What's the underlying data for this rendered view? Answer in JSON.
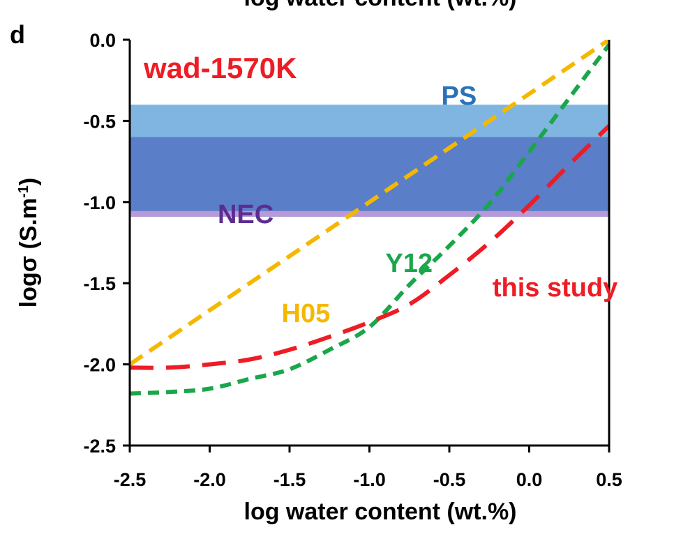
{
  "panel_label": "d",
  "top_cutoff_text": "log water content (wt.%)",
  "chart_data": {
    "type": "line",
    "title": "wad-1570K",
    "xlabel": "log water content (wt.%)",
    "ylabel": "logσ (S.m",
    "ylabel_sup": "-1",
    "ylabel_close": ")",
    "xlim": [
      -2.5,
      0.5
    ],
    "ylim": [
      -2.5,
      0.0
    ],
    "xticks": [
      "-2.5",
      "-2.0",
      "-1.5",
      "-1.0",
      "-0.5",
      "0.0",
      "0.5"
    ],
    "yticks": [
      "0.0",
      "-0.5",
      "-1.0",
      "-1.5",
      "-2.0",
      "-2.5"
    ],
    "grid": false,
    "bands": [
      {
        "label": "PS",
        "y0": -1.06,
        "y1": -0.4,
        "color": "#7fb5e0",
        "label_color": "#2a72b8",
        "label_x": -0.55,
        "label_y": -0.4
      },
      {
        "label": "NEC",
        "y0": -1.09,
        "y1": -0.6,
        "color": "#5a7ec8",
        "label_color": "#5b2d91",
        "label_x": -1.95,
        "label_y": -1.13,
        "edge_color": "#b99ad8"
      }
    ],
    "series": [
      {
        "name": "H05",
        "color": "#f5b800",
        "dash": "22 12",
        "label_color": "#f5b800",
        "label_x": -1.55,
        "label_y": -1.74,
        "x": [
          -2.5,
          -1.0,
          0.5
        ],
        "y": [
          -2.0,
          -1.0,
          0.0
        ]
      },
      {
        "name": "Y12",
        "color": "#1aa64a",
        "dash": "16 10",
        "label_color": "#1aa64a",
        "label_x": -0.9,
        "label_y": -1.43,
        "x": [
          -2.5,
          -2.25,
          -2.0,
          -1.75,
          -1.5,
          -1.25,
          -1.0,
          -0.75,
          -0.5,
          -0.25,
          0.0,
          0.25,
          0.5
        ],
        "y": [
          -2.18,
          -2.17,
          -2.15,
          -2.09,
          -2.03,
          -1.91,
          -1.77,
          -1.51,
          -1.27,
          -1.01,
          -0.69,
          -0.36,
          -0.03
        ]
      },
      {
        "name": "this study",
        "color": "#ee1c24",
        "dash": "34 18",
        "label_color": "#ee1c24",
        "label_x": -0.23,
        "label_y": -1.58,
        "x": [
          -2.5,
          -2.25,
          -2.0,
          -1.75,
          -1.5,
          -1.25,
          -1.0,
          -0.75,
          -0.5,
          -0.25,
          0.0,
          0.25,
          0.5
        ],
        "y": [
          -2.02,
          -2.02,
          -2.0,
          -1.97,
          -1.91,
          -1.83,
          -1.74,
          -1.63,
          -1.45,
          -1.25,
          -1.02,
          -0.77,
          -0.53
        ]
      }
    ],
    "title_color": "#ee1c24"
  }
}
